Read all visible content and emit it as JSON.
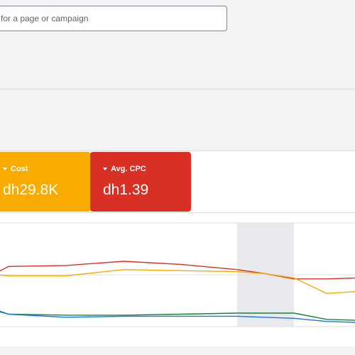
{
  "search": {
    "placeholder": "for a page or campaign"
  },
  "metrics": [
    {
      "label": "Cost",
      "value": "dh29.8K",
      "color": "#f9ab00"
    },
    {
      "label": "Avg. CPC",
      "value": "dh1.39",
      "color": "#d93025"
    }
  ],
  "chart_data": {
    "type": "line",
    "grid": true,
    "highlighted_interval_index": 6,
    "series": [
      {
        "color": "#d93025",
        "values": [
          0.52,
          0.58,
          0.59,
          0.63,
          0.6,
          0.55,
          0.51,
          0.46,
          0.46,
          0.47
        ]
      },
      {
        "color": "#f9ab00",
        "values": [
          0.5,
          0.49,
          0.49,
          0.55,
          0.54,
          0.53,
          0.51,
          0.47,
          0.32,
          0.34
        ]
      },
      {
        "color": "#188038",
        "values": [
          0.16,
          0.12,
          0.11,
          0.11,
          0.12,
          0.13,
          0.13,
          0.13,
          0.07,
          0.06
        ]
      },
      {
        "color": "#1a73e8",
        "values": [
          0.15,
          0.12,
          0.09,
          0.1,
          0.1,
          0.1,
          0.09,
          0.08,
          0.05,
          0.04
        ]
      }
    ]
  }
}
